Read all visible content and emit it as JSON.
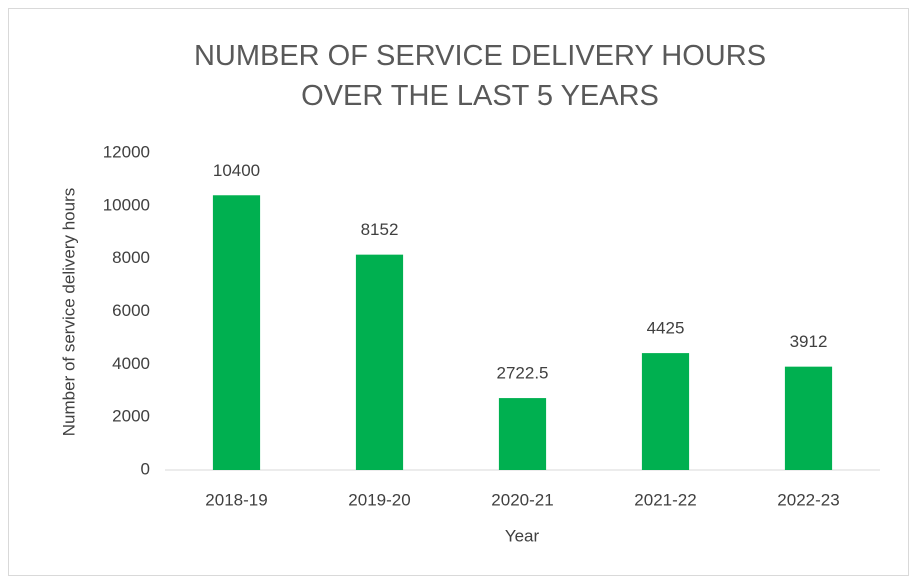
{
  "chart_data": {
    "type": "bar",
    "title": "NUMBER OF SERVICE DELIVERY HOURS OVER THE LAST 5 YEARS",
    "x_label": "Year",
    "y_label": "Number of service delivery hours",
    "categories": [
      "2018-19",
      "2019-20",
      "2020-21",
      "2021-22",
      "2022-23"
    ],
    "values": [
      10400,
      8152,
      2722.5,
      4425,
      3912
    ],
    "color": "#00b050",
    "ylim": [
      0,
      12000
    ],
    "yticks": [
      0,
      2000,
      4000,
      6000,
      8000,
      10000,
      12000
    ],
    "grid": false
  }
}
